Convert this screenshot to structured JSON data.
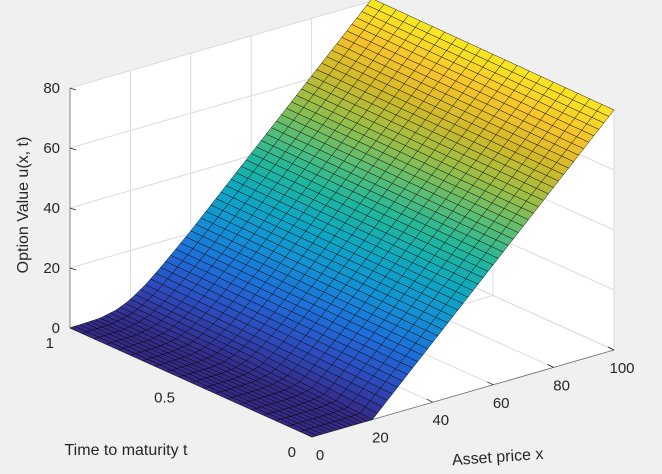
{
  "chart_data": {
    "type": "surface",
    "title": "",
    "xlabel": "Asset price x",
    "ylabel": "Time to maturity t",
    "zlabel": "Option Value u(x, t)",
    "xlim": [
      0,
      100
    ],
    "ylim": [
      0,
      1
    ],
    "zlim": [
      0,
      80
    ],
    "x_ticks": [
      "0",
      "20",
      "40",
      "60",
      "80",
      "100"
    ],
    "y_ticks": [
      "0",
      "0.5",
      "1"
    ],
    "z_ticks": [
      "0",
      "20",
      "40",
      "60",
      "80"
    ],
    "grid": true,
    "colormap": "parula",
    "strike": 20,
    "surface_x_samples": [
      0,
      10,
      15,
      18,
      20,
      22,
      25,
      30,
      40,
      50,
      60,
      70,
      80,
      90,
      100
    ],
    "surface_t_samples": [
      0,
      0.5,
      1
    ],
    "surface_values": [
      [
        0,
        0,
        0,
        0,
        0,
        2,
        5,
        10,
        20,
        30,
        40,
        50,
        60,
        70,
        80
      ],
      [
        0,
        0.1,
        0.7,
        1.8,
        2.9,
        4.1,
        6.4,
        10.8,
        20.4,
        30.4,
        40.4,
        50.4,
        60.4,
        70.4,
        80.4
      ],
      [
        0,
        0.4,
        1.5,
        2.7,
        3.8,
        5.1,
        7.2,
        11.5,
        20.8,
        30.8,
        40.8,
        50.8,
        60.8,
        70.8,
        80.8
      ]
    ]
  },
  "colors": {
    "background": "#f0f0f0",
    "pane_fill": "#ffffff",
    "grid_line": "#dcdcdc",
    "axis_line": "#262626",
    "mesh_edge": "#000000"
  }
}
